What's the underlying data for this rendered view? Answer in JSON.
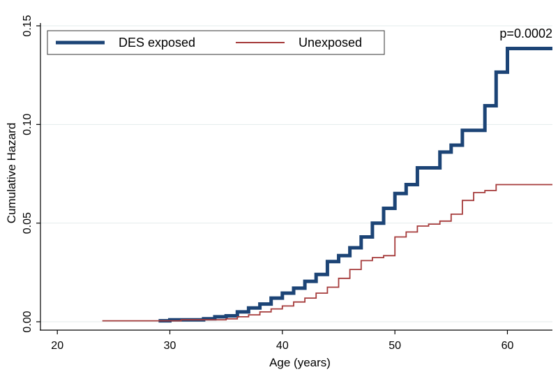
{
  "chart_data": {
    "type": "line",
    "xlabel": "Age (years)",
    "ylabel": "Cumulative Hazard",
    "xlim": [
      18.5,
      64
    ],
    "ylim": [
      0,
      0.15
    ],
    "xticks": [
      20,
      30,
      40,
      50,
      60
    ],
    "yticks": [
      0,
      0.05,
      0.1,
      0.15
    ],
    "xtick_labels": [
      "20",
      "30",
      "40",
      "50",
      "60"
    ],
    "ytick_labels": [
      "0.00",
      "0.05",
      "0.10",
      "0.15"
    ],
    "grid": "horizontal",
    "legend_position": "top-left",
    "annotation": "p=0.0002",
    "series": [
      {
        "name": "DES exposed",
        "color": "#1c4476",
        "step": true,
        "x": [
          29,
          30,
          33,
          34,
          35,
          36,
          37,
          38,
          39,
          40,
          41,
          42,
          43,
          44,
          45,
          46,
          47,
          48,
          49,
          50,
          51,
          52,
          53,
          54,
          55,
          56,
          57,
          58,
          59,
          60,
          64
        ],
        "y": [
          0.0005,
          0.001,
          0.0015,
          0.0025,
          0.003,
          0.005,
          0.007,
          0.009,
          0.012,
          0.0145,
          0.017,
          0.0205,
          0.024,
          0.0305,
          0.0335,
          0.0375,
          0.043,
          0.05,
          0.0575,
          0.065,
          0.0695,
          0.078,
          0.078,
          0.086,
          0.0895,
          0.097,
          0.097,
          0.1095,
          0.1265,
          0.1385,
          0.1385
        ]
      },
      {
        "name": "Unexposed",
        "color": "#a53a3a",
        "step": true,
        "x": [
          24,
          29,
          31,
          35,
          36,
          37,
          38,
          39,
          40,
          41,
          42,
          43,
          44,
          45,
          46,
          47,
          48,
          49,
          50,
          51,
          52,
          53,
          54,
          55,
          56,
          57,
          58,
          59,
          64
        ],
        "y": [
          0.0005,
          0.0005,
          0.001,
          0.0015,
          0.0025,
          0.0035,
          0.005,
          0.0065,
          0.008,
          0.01,
          0.012,
          0.0145,
          0.0175,
          0.022,
          0.0265,
          0.031,
          0.0325,
          0.0335,
          0.043,
          0.0455,
          0.0485,
          0.0495,
          0.051,
          0.0545,
          0.0615,
          0.0655,
          0.0665,
          0.0695,
          0.0695
        ]
      }
    ]
  }
}
